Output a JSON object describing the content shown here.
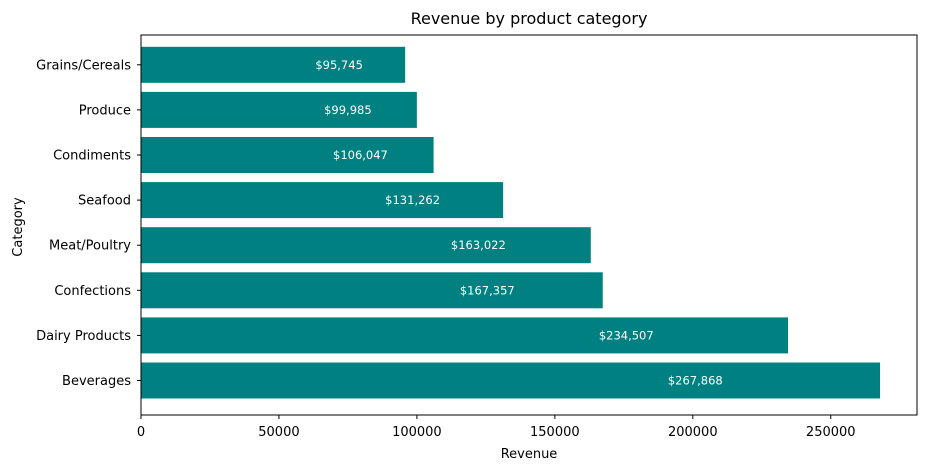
{
  "chart_data": {
    "type": "bar",
    "orientation": "horizontal",
    "title": "Revenue by product category",
    "xlabel": "Revenue",
    "ylabel": "Category",
    "categories": [
      "Beverages",
      "Dairy Products",
      "Confections",
      "Meat/Poultry",
      "Seafood",
      "Condiments",
      "Produce",
      "Grains/Cereals"
    ],
    "values": [
      267868,
      234507,
      167357,
      163022,
      131262,
      106047,
      99985,
      95745
    ],
    "data_labels": [
      "$267,868",
      "$234,507",
      "$167,357",
      "$163,022",
      "$131,262",
      "$106,047",
      "$99,985",
      "$95,745"
    ],
    "xticks": [
      0,
      50000,
      100000,
      150000,
      200000,
      250000
    ],
    "xtick_labels": [
      "0",
      "50000",
      "100000",
      "150000",
      "200000",
      "250000"
    ],
    "xlim": [
      0,
      281261
    ],
    "grid": false,
    "legend": "none",
    "bar_color": "#008080"
  }
}
